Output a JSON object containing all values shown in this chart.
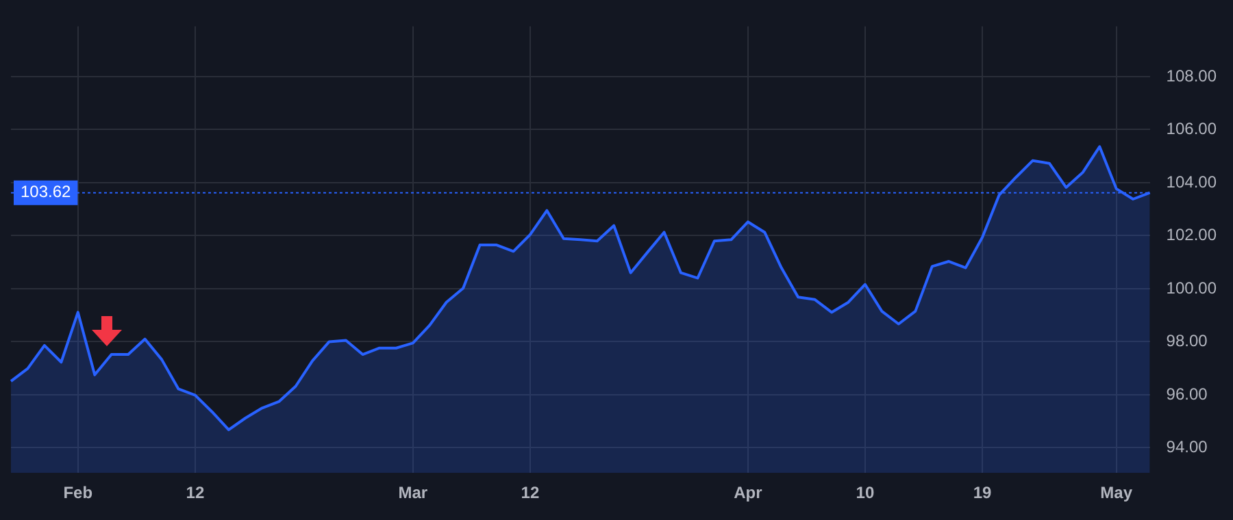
{
  "chart_data": {
    "type": "area",
    "color": "#2962ff",
    "categories": [
      null,
      null,
      null,
      null,
      "Feb",
      null,
      null,
      null,
      null,
      null,
      null,
      "12",
      null,
      null,
      null,
      null,
      null,
      null,
      null,
      null,
      null,
      null,
      null,
      null,
      "Mar",
      null,
      null,
      null,
      null,
      null,
      null,
      "12",
      null,
      null,
      null,
      null,
      null,
      null,
      null,
      null,
      null,
      null,
      null,
      null,
      "Apr",
      null,
      null,
      null,
      null,
      null,
      null,
      "10",
      null,
      null,
      null,
      null,
      null,
      null,
      "19",
      null,
      null,
      null,
      null,
      null,
      null,
      null,
      "May",
      null,
      null
    ],
    "values": [
      96.51,
      96.99,
      97.86,
      97.23,
      99.11,
      96.75,
      97.52,
      97.52,
      98.1,
      97.33,
      96.22,
      95.98,
      95.36,
      94.68,
      95.12,
      95.5,
      95.74,
      96.32,
      97.28,
      98.0,
      98.05,
      97.52,
      97.76,
      97.76,
      97.95,
      98.62,
      99.49,
      100.02,
      101.65,
      101.65,
      101.41,
      102.04,
      102.95,
      101.89,
      101.85,
      101.8,
      102.38,
      100.6,
      101.37,
      102.13,
      100.6,
      100.4,
      101.8,
      101.85,
      102.52,
      102.13,
      100.79,
      99.68,
      99.59,
      99.11,
      99.49,
      100.16,
      99.15,
      98.67,
      99.15,
      100.84,
      101.03,
      100.79,
      101.94,
      103.53,
      104.2,
      104.83,
      104.73,
      103.82,
      104.39,
      105.36,
      103.77,
      103.38,
      103.62
    ],
    "ylim": [
      93.05,
      109.9
    ],
    "yticks": [
      {
        "value": 94,
        "label": "94.00"
      },
      {
        "value": 96,
        "label": "96.00"
      },
      {
        "value": 98,
        "label": "98.00"
      },
      {
        "value": 100,
        "label": "100.00"
      },
      {
        "value": 102,
        "label": "102.00"
      },
      {
        "value": 104,
        "label": "104.00"
      },
      {
        "value": 106,
        "label": "106.00"
      },
      {
        "value": 108,
        "label": "108.00"
      }
    ],
    "grid": true,
    "ref_lines": [
      {
        "axis": "y",
        "value": 103.62,
        "label": "103.62",
        "color": "#2962ff",
        "line_style": "dotted"
      }
    ]
  }
}
